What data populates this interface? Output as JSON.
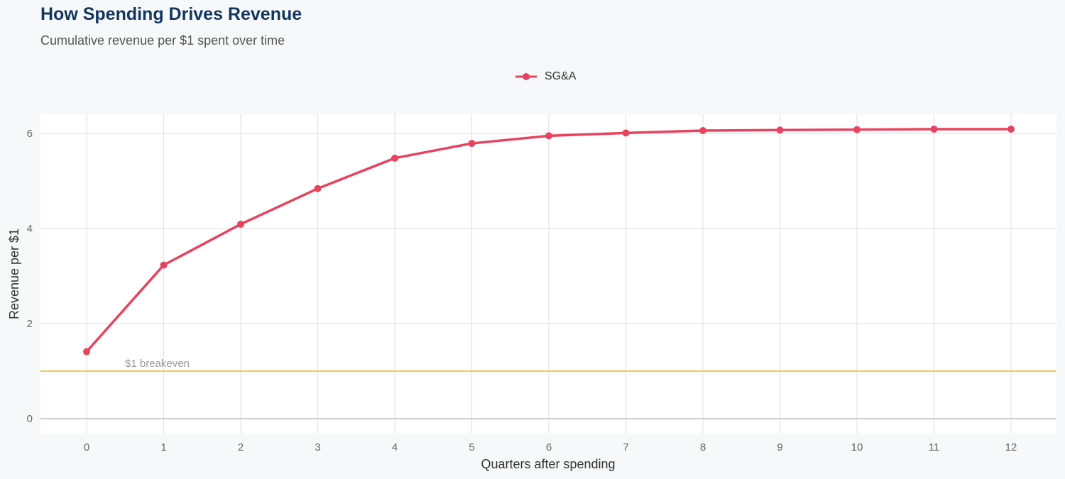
{
  "chart_data": {
    "type": "line",
    "title": "How Spending Drives Revenue",
    "subtitle": "Cumulative revenue per $1 spent over time",
    "xlabel": "Quarters after spending",
    "ylabel": "Revenue per $1",
    "x": [
      0,
      1,
      2,
      3,
      4,
      5,
      6,
      7,
      8,
      9,
      10,
      11,
      12
    ],
    "series": [
      {
        "name": "SG&A",
        "color": "#e8435e",
        "values": [
          1.41,
          3.23,
          4.09,
          4.84,
          5.48,
          5.79,
          5.95,
          6.01,
          6.06,
          6.07,
          6.08,
          6.09,
          6.09
        ]
      }
    ],
    "xlim": [
      -0.6,
      12.6
    ],
    "ylim": [
      -0.3,
      6.4
    ],
    "yticks": [
      0,
      2,
      4,
      6
    ],
    "xticks": [
      0,
      1,
      2,
      3,
      4,
      5,
      6,
      7,
      8,
      9,
      10,
      11,
      12
    ],
    "reference_line": {
      "value": 1,
      "label": "$1 breakeven",
      "color": "#f5c84c"
    },
    "grid": true,
    "legend_position": "top-center"
  }
}
